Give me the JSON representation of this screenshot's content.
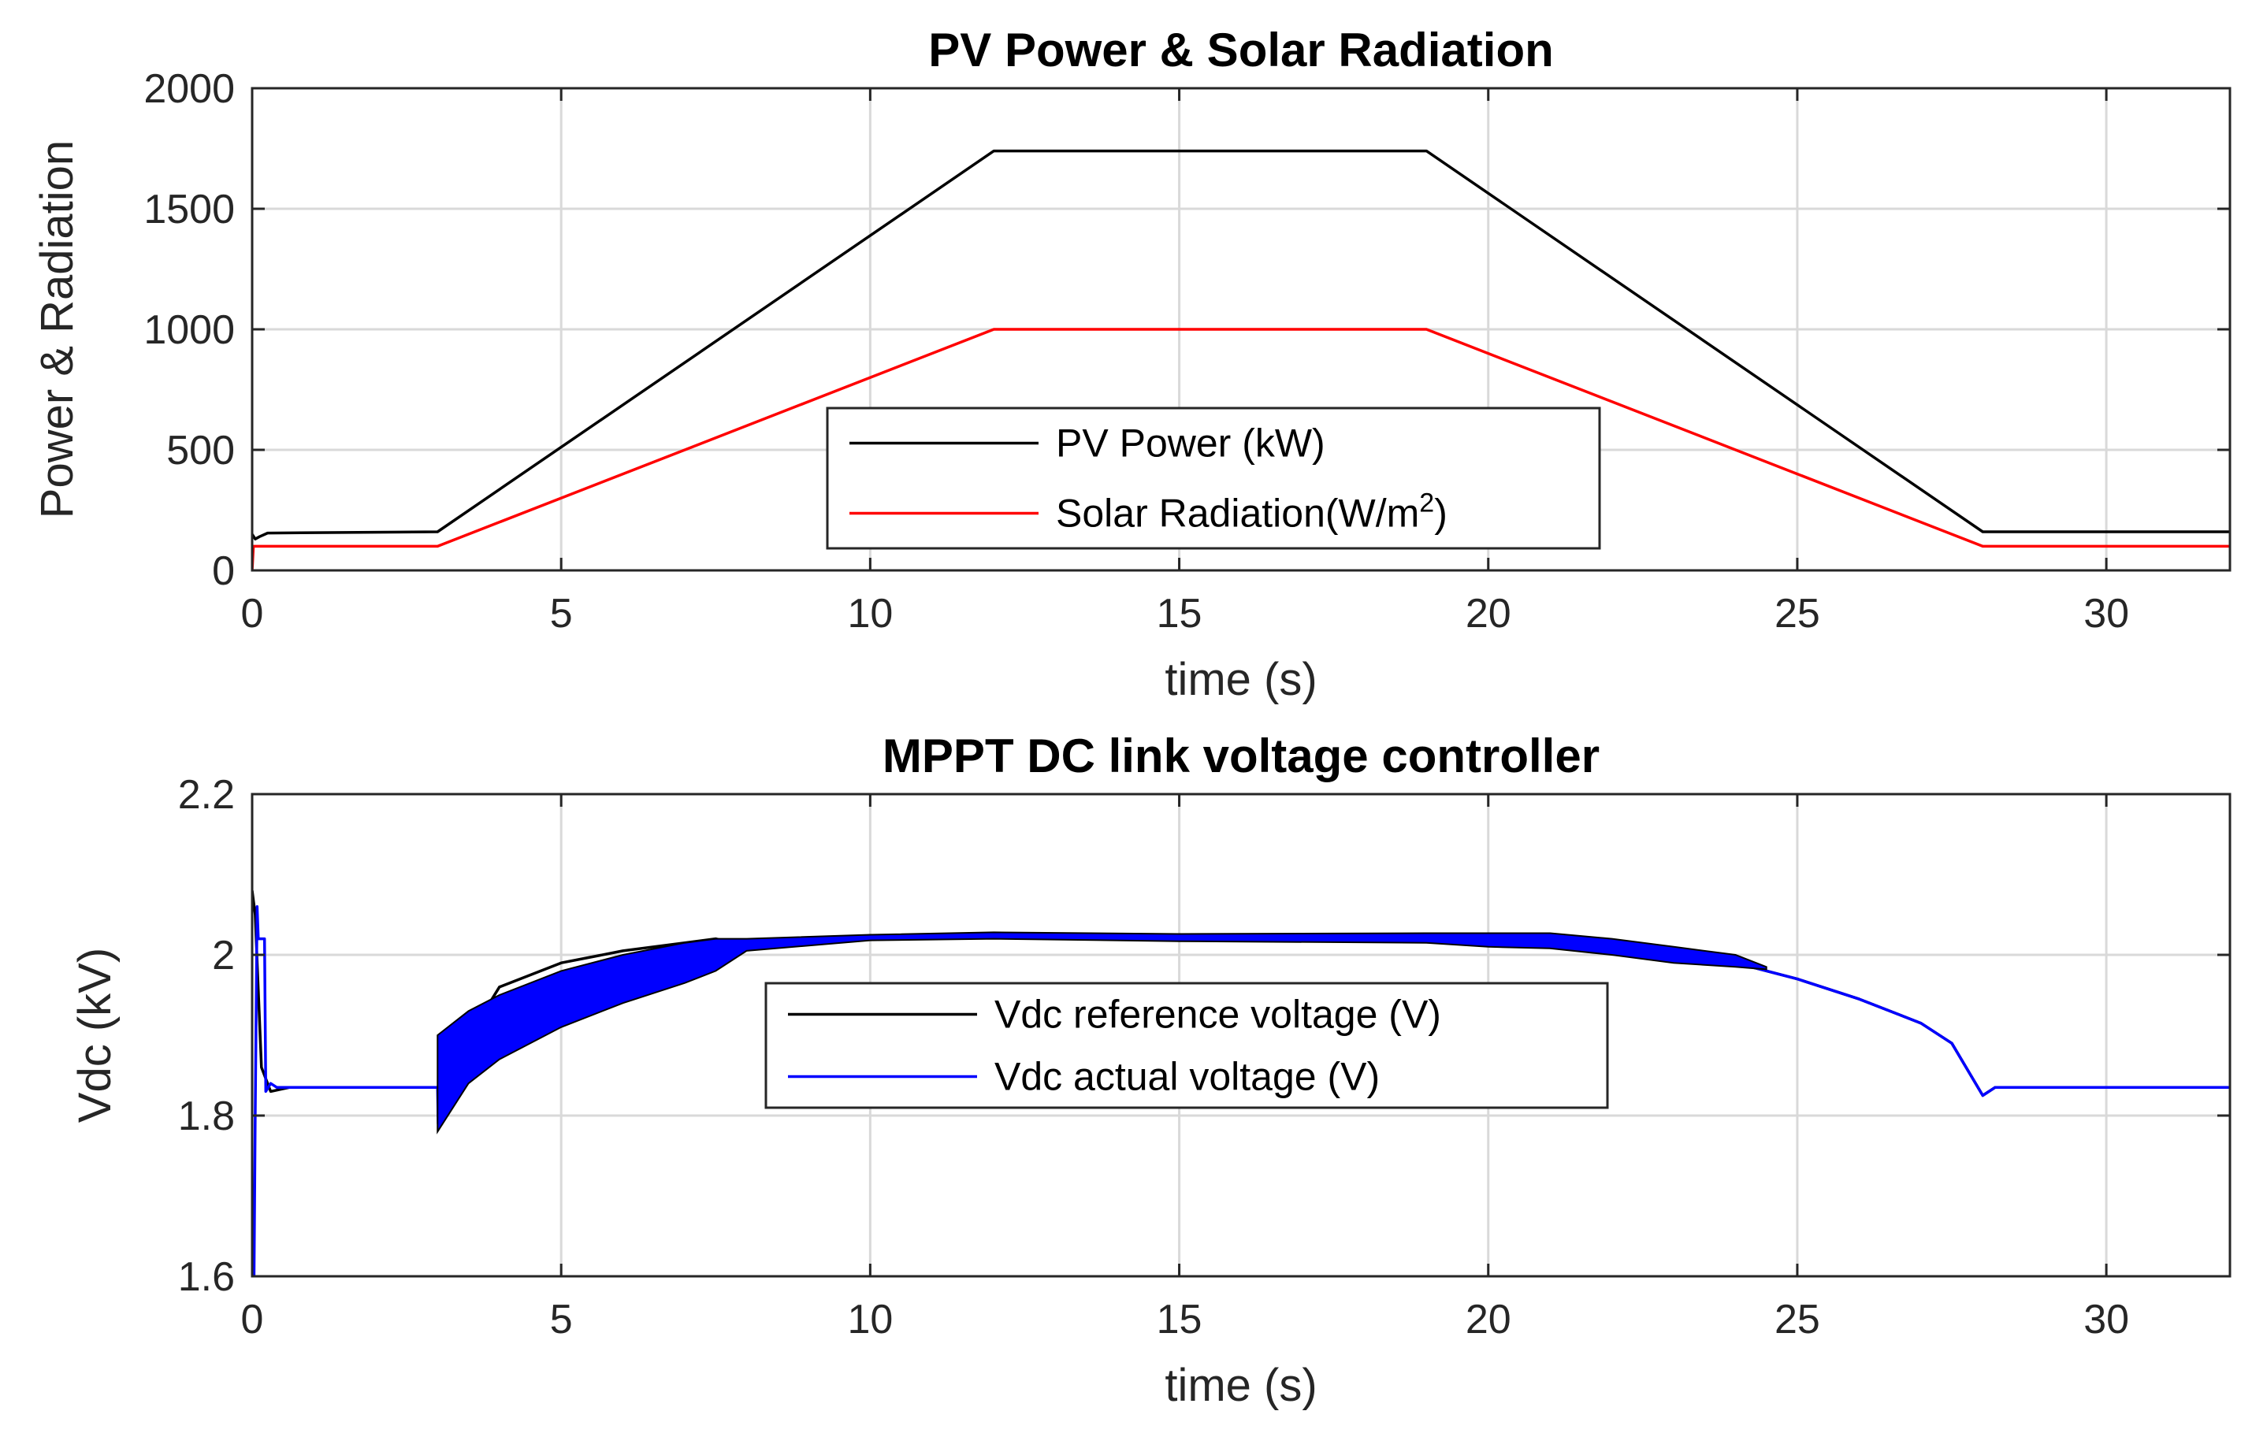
{
  "chart_data": [
    {
      "type": "line",
      "title": "PV Power & Solar Radiation",
      "xlabel": "time (s)",
      "ylabel": "Power & Radiation",
      "xlim": [
        0,
        32
      ],
      "ylim": [
        0,
        2000
      ],
      "xticks": [
        0,
        5,
        10,
        15,
        20,
        25,
        30
      ],
      "yticks": [
        0,
        500,
        1000,
        1500,
        2000
      ],
      "grid": true,
      "legend_position": "center-bottom",
      "series": [
        {
          "name": "PV Power (kW)",
          "color": "#000000",
          "x": [
            0,
            0.05,
            0.12,
            0.25,
            3.0,
            12.0,
            19.0,
            28.0,
            32.0
          ],
          "y": [
            150,
            130,
            140,
            155,
            160,
            1740,
            1740,
            160,
            160
          ]
        },
        {
          "name": "Solar Radiation(W/m2)",
          "legend_main": "Solar Radiation(W/m",
          "legend_sup": "2",
          "legend_end": ")",
          "color": "#ff0000",
          "x": [
            0,
            0.02,
            0.05,
            3.0,
            12.0,
            19.0,
            28.0,
            32.0
          ],
          "y": [
            0,
            100,
            100,
            100,
            1000,
            1000,
            100,
            100
          ]
        }
      ]
    },
    {
      "type": "line",
      "title": "MPPT DC link voltage controller",
      "xlabel": "time (s)",
      "ylabel": "Vdc (kV)",
      "xlim": [
        0,
        32
      ],
      "ylim": [
        1.6,
        2.2
      ],
      "xticks": [
        0,
        5,
        10,
        15,
        20,
        25,
        30
      ],
      "yticks": [
        1.6,
        1.8,
        2,
        2.2
      ],
      "ytick_labels": [
        "1.6",
        "1.8",
        "2",
        "2.2"
      ],
      "grid": true,
      "legend_position": "center",
      "series": [
        {
          "name": "Vdc reference voltage (V)",
          "color": "#000000",
          "x": [
            0,
            0.05,
            0.15,
            0.3,
            0.6,
            1.0,
            3.0,
            4.0,
            5.0,
            6.0,
            7.0,
            7.5,
            8.0,
            10.0,
            12.0,
            15.0,
            19.0,
            21.0,
            23.0,
            24.0,
            25.0,
            26.0,
            26.5,
            27.0,
            27.5,
            28.0,
            28.2,
            32.0
          ],
          "y": [
            2.08,
            2.05,
            1.86,
            1.83,
            1.835,
            1.835,
            1.835,
            1.96,
            1.99,
            2.005,
            2.015,
            2.02,
            2.01,
            2.02,
            2.025,
            2.022,
            2.02,
            2.018,
            2.005,
            1.99,
            1.97,
            1.945,
            1.93,
            1.915,
            1.89,
            1.825,
            1.835,
            1.835
          ]
        },
        {
          "name": "Vdc actual voltage (V)",
          "color": "#0000ff",
          "x": [
            0,
            0.03,
            0.05,
            0.08,
            0.1,
            0.15,
            0.2,
            0.22,
            0.3,
            0.4,
            0.6,
            1.0,
            3.0,
            3.01,
            3.05,
            4.0,
            5.0,
            6.0,
            7.0,
            7.5,
            8.0,
            10.0,
            12.0,
            15.0,
            19.0,
            21.0,
            23.0,
            24.0,
            25.0,
            26.0,
            26.5,
            27.0,
            27.5,
            28.0,
            28.2,
            32.0
          ],
          "y": [
            1.6,
            1.6,
            1.8,
            2.06,
            2.02,
            2.02,
            2.02,
            1.83,
            1.84,
            1.835,
            1.835,
            1.835,
            1.835,
            1.79,
            1.88,
            1.93,
            1.97,
            1.99,
            2.0,
            2.01,
            2.015,
            2.02,
            2.025,
            2.022,
            2.02,
            2.018,
            2.005,
            1.99,
            1.97,
            1.945,
            1.93,
            1.915,
            1.89,
            1.825,
            1.835,
            1.835
          ]
        }
      ],
      "ripple_band": {
        "color": "#0000ff",
        "x": [
          3.0,
          3.5,
          4.0,
          5.0,
          6.0,
          7.0,
          7.5,
          8.0,
          10.0,
          12.0,
          15.0,
          19.0,
          20.0,
          21.0,
          22.0,
          23.0,
          24.0,
          24.5
        ],
        "upper": [
          1.9,
          1.93,
          1.95,
          1.98,
          2.0,
          2.015,
          2.02,
          2.02,
          2.025,
          2.028,
          2.026,
          2.027,
          2.027,
          2.027,
          2.02,
          2.01,
          2.0,
          1.985
        ],
        "lower": [
          1.78,
          1.84,
          1.87,
          1.91,
          1.94,
          1.965,
          1.98,
          2.005,
          2.018,
          2.02,
          2.017,
          2.015,
          2.01,
          2.008,
          2.0,
          1.99,
          1.985,
          1.982
        ]
      }
    }
  ]
}
